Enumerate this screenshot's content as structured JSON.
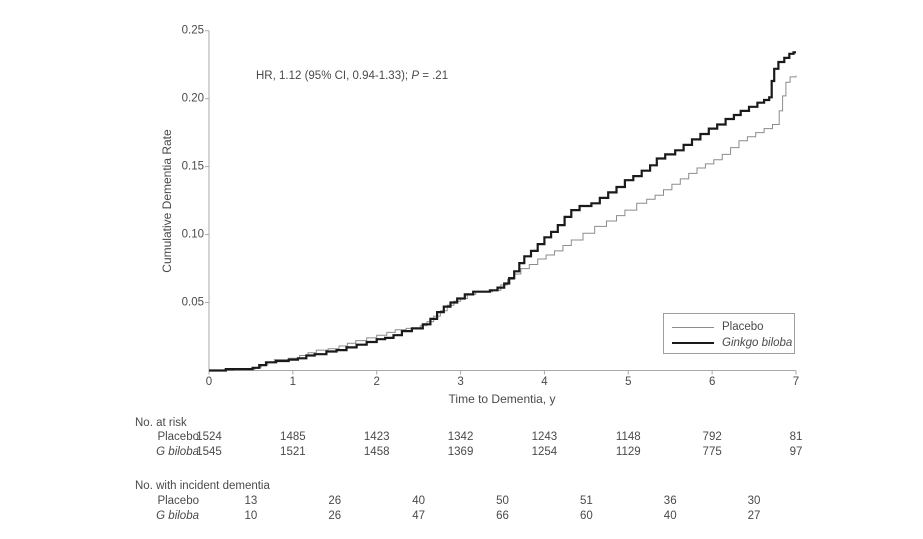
{
  "figure_meta": {
    "background": "#ffffff",
    "text_color": "#4a4a4a",
    "axis_color": "#a9a9a9"
  },
  "chart_data": {
    "type": "line",
    "subtype": "kaplan-meier-step",
    "title": "",
    "xlabel": "Time to Dementia, y",
    "ylabel": "Cumulative Dementia Rate",
    "xlim": [
      0,
      7
    ],
    "ylim": [
      0,
      0.25
    ],
    "x_ticks": [
      "0",
      "1",
      "2",
      "3",
      "4",
      "5",
      "6",
      "7"
    ],
    "y_ticks": [
      0.05,
      0.1,
      0.15,
      0.2,
      0.25
    ],
    "y_tick_labels": [
      "0.05",
      "0.10",
      "0.15",
      "0.20",
      "0.25"
    ],
    "grid": false,
    "legend_position": "lower-right-inset",
    "annotation": {
      "text": "HR, 1.12 (95% CI, 0.94-1.33); P = .21",
      "prefix": "HR, 1.12 (95% CI, 0.94-1.33); ",
      "p": "P",
      "suffix": " = .21"
    },
    "series": [
      {
        "name": "Placebo",
        "color": "#8c8c8c",
        "stroke_width": 1,
        "italic_label": false,
        "points": [
          [
            0.3,
            0.001
          ],
          [
            0.55,
            0.002
          ],
          [
            0.62,
            0.004
          ],
          [
            0.7,
            0.006
          ],
          [
            0.78,
            0.008
          ],
          [
            0.95,
            0.009
          ],
          [
            1.08,
            0.011
          ],
          [
            1.18,
            0.013
          ],
          [
            1.28,
            0.015
          ],
          [
            1.42,
            0.016
          ],
          [
            1.55,
            0.018
          ],
          [
            1.65,
            0.02
          ],
          [
            1.75,
            0.022
          ],
          [
            1.88,
            0.024
          ],
          [
            2.0,
            0.026
          ],
          [
            2.12,
            0.028
          ],
          [
            2.22,
            0.03
          ],
          [
            2.35,
            0.031
          ],
          [
            2.52,
            0.033
          ],
          [
            2.6,
            0.036
          ],
          [
            2.68,
            0.04
          ],
          [
            2.76,
            0.044
          ],
          [
            2.84,
            0.048
          ],
          [
            2.92,
            0.051
          ],
          [
            3.0,
            0.053
          ],
          [
            3.08,
            0.056
          ],
          [
            3.18,
            0.058
          ],
          [
            3.38,
            0.059
          ],
          [
            3.48,
            0.063
          ],
          [
            3.56,
            0.067
          ],
          [
            3.64,
            0.071
          ],
          [
            3.72,
            0.075
          ],
          [
            3.82,
            0.078
          ],
          [
            3.92,
            0.082
          ],
          [
            4.02,
            0.085
          ],
          [
            4.12,
            0.088
          ],
          [
            4.22,
            0.092
          ],
          [
            4.32,
            0.096
          ],
          [
            4.46,
            0.101
          ],
          [
            4.6,
            0.106
          ],
          [
            4.74,
            0.11
          ],
          [
            4.86,
            0.114
          ],
          [
            4.96,
            0.118
          ],
          [
            5.1,
            0.123
          ],
          [
            5.22,
            0.126
          ],
          [
            5.32,
            0.129
          ],
          [
            5.42,
            0.133
          ],
          [
            5.52,
            0.137
          ],
          [
            5.62,
            0.141
          ],
          [
            5.72,
            0.145
          ],
          [
            5.82,
            0.149
          ],
          [
            5.92,
            0.152
          ],
          [
            6.02,
            0.155
          ],
          [
            6.12,
            0.159
          ],
          [
            6.22,
            0.164
          ],
          [
            6.32,
            0.169
          ],
          [
            6.42,
            0.172
          ],
          [
            6.52,
            0.175
          ],
          [
            6.62,
            0.178
          ],
          [
            6.72,
            0.181
          ],
          [
            6.8,
            0.191
          ],
          [
            6.84,
            0.202
          ],
          [
            6.88,
            0.212
          ],
          [
            6.93,
            0.216
          ],
          [
            7.0,
            0.217
          ]
        ]
      },
      {
        "name": "Ginkgo biloba",
        "color": "#1a1a1a",
        "stroke_width": 2.2,
        "italic_label": true,
        "points": [
          [
            0.2,
            0.001
          ],
          [
            0.52,
            0.002
          ],
          [
            0.6,
            0.004
          ],
          [
            0.68,
            0.006
          ],
          [
            0.8,
            0.007
          ],
          [
            0.95,
            0.008
          ],
          [
            1.06,
            0.009
          ],
          [
            1.16,
            0.011
          ],
          [
            1.26,
            0.012
          ],
          [
            1.4,
            0.014
          ],
          [
            1.52,
            0.015
          ],
          [
            1.64,
            0.017
          ],
          [
            1.76,
            0.019
          ],
          [
            1.88,
            0.021
          ],
          [
            2.0,
            0.023
          ],
          [
            2.1,
            0.024
          ],
          [
            2.2,
            0.026
          ],
          [
            2.3,
            0.029
          ],
          [
            2.42,
            0.031
          ],
          [
            2.55,
            0.034
          ],
          [
            2.64,
            0.038
          ],
          [
            2.72,
            0.043
          ],
          [
            2.8,
            0.047
          ],
          [
            2.88,
            0.05
          ],
          [
            2.96,
            0.053
          ],
          [
            3.05,
            0.056
          ],
          [
            3.15,
            0.058
          ],
          [
            3.35,
            0.059
          ],
          [
            3.44,
            0.061
          ],
          [
            3.52,
            0.064
          ],
          [
            3.58,
            0.068
          ],
          [
            3.64,
            0.073
          ],
          [
            3.7,
            0.079
          ],
          [
            3.76,
            0.084
          ],
          [
            3.84,
            0.088
          ],
          [
            3.92,
            0.093
          ],
          [
            4.0,
            0.098
          ],
          [
            4.08,
            0.102
          ],
          [
            4.16,
            0.107
          ],
          [
            4.24,
            0.113
          ],
          [
            4.32,
            0.118
          ],
          [
            4.42,
            0.121
          ],
          [
            4.56,
            0.123
          ],
          [
            4.66,
            0.127
          ],
          [
            4.76,
            0.131
          ],
          [
            4.86,
            0.135
          ],
          [
            4.96,
            0.14
          ],
          [
            5.06,
            0.143
          ],
          [
            5.16,
            0.147
          ],
          [
            5.26,
            0.151
          ],
          [
            5.34,
            0.156
          ],
          [
            5.44,
            0.159
          ],
          [
            5.56,
            0.162
          ],
          [
            5.66,
            0.166
          ],
          [
            5.76,
            0.17
          ],
          [
            5.86,
            0.174
          ],
          [
            5.96,
            0.178
          ],
          [
            6.06,
            0.181
          ],
          [
            6.16,
            0.185
          ],
          [
            6.26,
            0.188
          ],
          [
            6.34,
            0.191
          ],
          [
            6.44,
            0.194
          ],
          [
            6.54,
            0.197
          ],
          [
            6.62,
            0.199
          ],
          [
            6.68,
            0.201
          ],
          [
            6.71,
            0.213
          ],
          [
            6.74,
            0.222
          ],
          [
            6.79,
            0.227
          ],
          [
            6.86,
            0.23
          ],
          [
            6.92,
            0.233
          ],
          [
            6.97,
            0.234
          ]
        ]
      }
    ],
    "risk_table": {
      "title": "No. at risk",
      "times": [
        0,
        1,
        2,
        3,
        4,
        5,
        6,
        7
      ],
      "rows": [
        {
          "label": "Placebo",
          "italic": false,
          "values": [
            1524,
            1485,
            1423,
            1342,
            1243,
            1148,
            792,
            81
          ]
        },
        {
          "label": "G biloba",
          "italic": true,
          "values": [
            1545,
            1521,
            1458,
            1369,
            1254,
            1129,
            775,
            97
          ]
        }
      ]
    },
    "incident_table": {
      "title": "No. with incident dementia",
      "times": [
        0.5,
        1.5,
        2.5,
        3.5,
        4.5,
        5.5,
        6.5
      ],
      "rows": [
        {
          "label": "Placebo",
          "italic": false,
          "values": [
            13,
            26,
            40,
            50,
            51,
            36,
            30
          ]
        },
        {
          "label": "G biloba",
          "italic": true,
          "values": [
            10,
            26,
            47,
            66,
            60,
            40,
            27
          ]
        }
      ]
    }
  }
}
